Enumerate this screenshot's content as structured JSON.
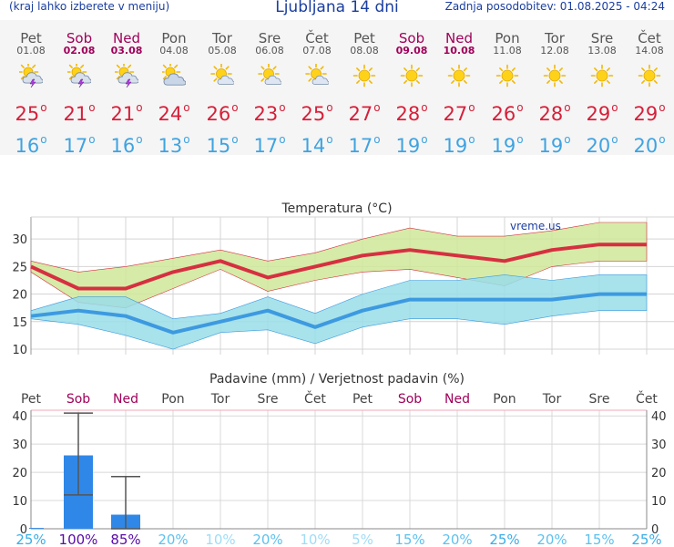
{
  "header": {
    "note": "(kraj lahko izberete v meniju)",
    "title": "Ljubljana 14 dni",
    "updated": "Zadnja posodobitev: 01.08.2025 - 04:24"
  },
  "days": [
    {
      "name": "Pet",
      "date": "01.08",
      "weekend": false,
      "icon": "sun-cloud-storm-icon",
      "tmax": "25",
      "tmin": "16"
    },
    {
      "name": "Sob",
      "date": "02.08",
      "weekend": true,
      "icon": "sun-cloud-storm-icon",
      "tmax": "21",
      "tmin": "17"
    },
    {
      "name": "Ned",
      "date": "03.08",
      "weekend": true,
      "icon": "sun-cloud-storm-icon",
      "tmax": "21",
      "tmin": "16"
    },
    {
      "name": "Pon",
      "date": "04.08",
      "weekend": false,
      "icon": "sun-cloud-icon",
      "tmax": "24",
      "tmin": "13"
    },
    {
      "name": "Tor",
      "date": "05.08",
      "weekend": false,
      "icon": "sun-small-cloud-icon",
      "tmax": "26",
      "tmin": "15"
    },
    {
      "name": "Sre",
      "date": "06.08",
      "weekend": false,
      "icon": "sun-small-cloud-icon",
      "tmax": "23",
      "tmin": "17"
    },
    {
      "name": "Čet",
      "date": "07.08",
      "weekend": false,
      "icon": "sun-small-cloud-icon",
      "tmax": "25",
      "tmin": "14"
    },
    {
      "name": "Pet",
      "date": "08.08",
      "weekend": false,
      "icon": "sun-icon",
      "tmax": "27",
      "tmin": "17"
    },
    {
      "name": "Sob",
      "date": "09.08",
      "weekend": true,
      "icon": "sun-icon",
      "tmax": "28",
      "tmin": "19"
    },
    {
      "name": "Ned",
      "date": "10.08",
      "weekend": true,
      "icon": "sun-icon",
      "tmax": "27",
      "tmin": "19"
    },
    {
      "name": "Pon",
      "date": "11.08",
      "weekend": false,
      "icon": "sun-icon",
      "tmax": "26",
      "tmin": "19"
    },
    {
      "name": "Tor",
      "date": "12.08",
      "weekend": false,
      "icon": "sun-icon",
      "tmax": "28",
      "tmin": "19"
    },
    {
      "name": "Sre",
      "date": "13.08",
      "weekend": false,
      "icon": "sun-icon",
      "tmax": "29",
      "tmin": "20"
    },
    {
      "name": "Čet",
      "date": "14.08",
      "weekend": false,
      "icon": "sun-icon",
      "tmax": "29",
      "tmin": "20"
    }
  ],
  "chart_data": [
    {
      "type": "line",
      "title": "Temperatura (°C)",
      "watermark": "vreme.us",
      "ylim": [
        9,
        34
      ],
      "yticks": [
        10,
        15,
        20,
        25,
        30
      ],
      "grid": true,
      "x": [
        "01.08",
        "02.08",
        "03.08",
        "04.08",
        "05.08",
        "06.08",
        "07.08",
        "08.08",
        "09.08",
        "10.08",
        "11.08",
        "12.08",
        "13.08",
        "14.08"
      ],
      "series": [
        {
          "role": "max",
          "values": [
            25,
            21,
            21,
            24,
            26,
            23,
            25,
            27,
            28,
            27,
            26,
            28,
            29,
            29
          ],
          "color": "#d63040",
          "band_upper": [
            26,
            24,
            25,
            26.5,
            28,
            26,
            27.5,
            30,
            32,
            30.5,
            30.5,
            31.5,
            33,
            33
          ],
          "band_lower": [
            24,
            18.5,
            17.5,
            21,
            24.5,
            20.5,
            22.5,
            24,
            24.5,
            23,
            21.5,
            25,
            26,
            26
          ],
          "band_color": "#cfe899"
        },
        {
          "role": "min",
          "values": [
            16,
            17,
            16,
            13,
            15,
            17,
            14,
            17,
            19,
            19,
            19,
            19,
            20,
            20
          ],
          "color": "#3d9ae0",
          "band_upper": [
            17,
            19.5,
            19.5,
            15.5,
            16.5,
            19.5,
            16.5,
            20,
            22.5,
            22.5,
            23.5,
            22.5,
            23.5,
            23.5
          ],
          "band_lower": [
            15.5,
            14.5,
            12.5,
            10,
            13,
            13.5,
            11,
            14,
            15.5,
            15.5,
            14.5,
            16,
            17,
            17
          ],
          "band_color": "#99dde8"
        }
      ]
    },
    {
      "type": "bar",
      "title": "Padavine (mm) / Verjetnost padavin (%)",
      "ylim": [
        0,
        42
      ],
      "yticks": [
        0,
        10,
        20,
        30,
        40
      ],
      "grid": true,
      "categories": [
        "Pet",
        "Sob",
        "Ned",
        "Pon",
        "Tor",
        "Sre",
        "Čet",
        "Pet",
        "Sob",
        "Ned",
        "Pon",
        "Tor",
        "Sre",
        "Čet"
      ],
      "weekend": [
        false,
        true,
        true,
        false,
        false,
        false,
        false,
        false,
        true,
        true,
        false,
        false,
        false,
        false
      ],
      "values": [
        0.3,
        26,
        5,
        0,
        0,
        0,
        0,
        0,
        0,
        0,
        0,
        0,
        0,
        0
      ],
      "error_high": [
        null,
        41,
        18.5,
        null,
        null,
        null,
        null,
        null,
        null,
        null,
        null,
        null,
        null,
        null
      ],
      "error_low": [
        null,
        12,
        0,
        null,
        null,
        null,
        null,
        null,
        null,
        null,
        null,
        null,
        null,
        null
      ],
      "probability": [
        "25%",
        "100%",
        "85%",
        "20%",
        "10%",
        "20%",
        "10%",
        "5%",
        "15%",
        "20%",
        "25%",
        "20%",
        "15%",
        "25%"
      ],
      "probability_values": [
        25,
        100,
        85,
        20,
        10,
        20,
        10,
        5,
        15,
        20,
        25,
        20,
        15,
        25
      ],
      "bar_color": "#2f88e8"
    }
  ]
}
